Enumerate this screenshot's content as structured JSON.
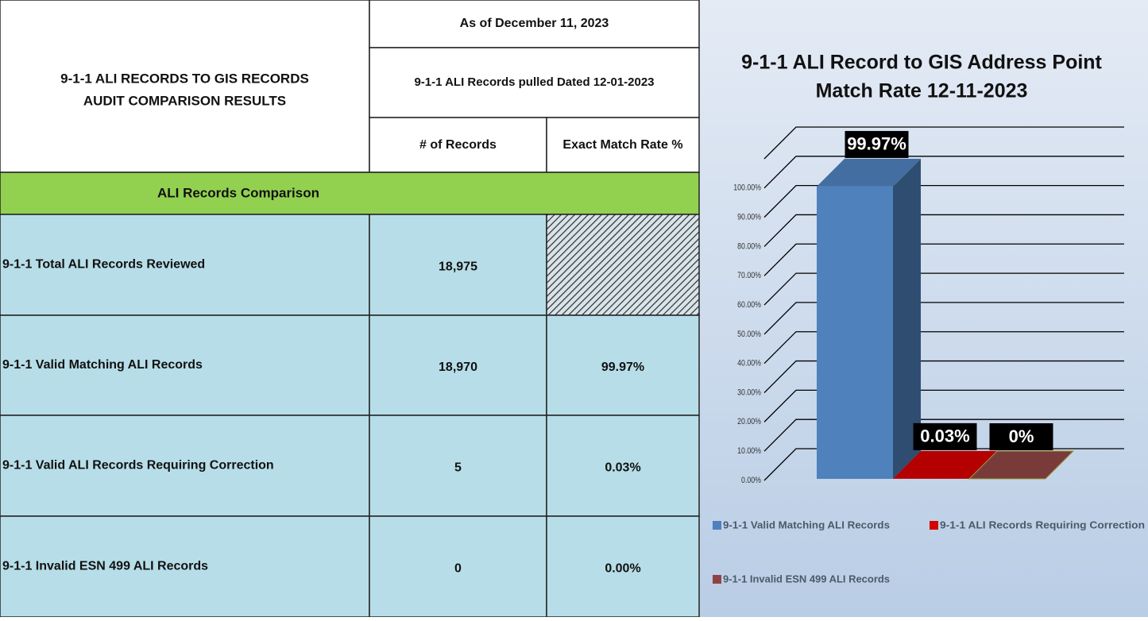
{
  "table": {
    "title": [
      "9-1-1 ALI RECORDS TO GIS RECORDS",
      "AUDIT COMPARISON RESULTS"
    ],
    "as_of": "As of December 11, 2023",
    "pulled": "9-1-1 ALI Records pulled Dated 12-01-2023",
    "columns": [
      "# of Records",
      "Exact Match Rate %"
    ],
    "section": "ALI Records Comparison",
    "rows": [
      {
        "label": "9-1-1 Total ALI Records Reviewed",
        "records": "18,975"
      },
      {
        "label": "9-1-1 Valid Matching ALI Records",
        "records": "18,970",
        "rate": "99.97%"
      },
      {
        "label": "9-1-1 Valid ALI Records Requiring Correction",
        "records": "5",
        "rate": "0.03%"
      },
      {
        "label": "9-1-1 Invalid ESN 499 ALI Records",
        "records": "0",
        "rate": "0.00%"
      }
    ]
  },
  "chart_data": {
    "type": "bar",
    "title": [
      "9-1-1 ALI Record to GIS Address Point",
      "Match Rate 12-11-2023"
    ],
    "series": [
      {
        "name": "9-1-1 Valid Matching ALI Records",
        "color": "#4f81bd",
        "values": [
          99.97
        ],
        "value_labels": [
          "99.97%"
        ]
      },
      {
        "name": "9-1-1  ALI Records Requiring Correction",
        "color": "#d40000",
        "values": [
          0.03
        ],
        "value_labels": [
          "0.03%"
        ]
      },
      {
        "name": "9-1-1 Invalid ESN 499 ALI Records",
        "color": "#8e4444",
        "values": [
          0
        ],
        "value_labels": [
          "0%"
        ]
      }
    ],
    "ylim": [
      0,
      110
    ],
    "yticks": [
      {
        "value": 0,
        "label": "0.00%"
      },
      {
        "value": 10,
        "label": "10.00%"
      },
      {
        "value": 20,
        "label": "20.00%"
      },
      {
        "value": 30,
        "label": "30.00%"
      },
      {
        "value": 40,
        "label": "40.00%"
      },
      {
        "value": 50,
        "label": "50.00%"
      },
      {
        "value": 60,
        "label": "60.00%"
      },
      {
        "value": 70,
        "label": "70.00%"
      },
      {
        "value": 80,
        "label": "80.00%"
      },
      {
        "value": 90,
        "label": "90.00%"
      },
      {
        "value": 100,
        "label": "100.00%"
      }
    ],
    "grid": true,
    "legend": "bottom"
  }
}
